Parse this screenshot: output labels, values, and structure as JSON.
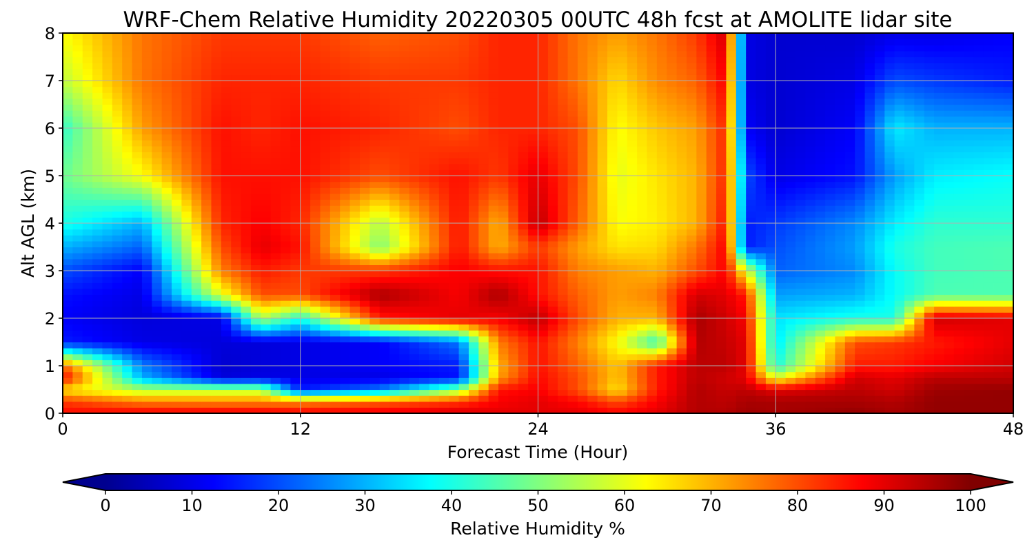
{
  "chart_data": {
    "type": "heatmap",
    "title": "WRF-Chem Relative Humidity 20220305 00UTC 48h fcst at AMOLITE lidar site",
    "xlabel": "Forecast Time (Hour)",
    "ylabel": "Alt AGL (km)",
    "xlim": [
      0,
      48
    ],
    "ylim": [
      0,
      8
    ],
    "xticks": [
      "0",
      "12",
      "24",
      "36",
      "48"
    ],
    "yticks": [
      "0",
      "1",
      "2",
      "3",
      "4",
      "5",
      "6",
      "7",
      "8"
    ],
    "grid": true,
    "colorbar": {
      "label": "Relative Humidity %",
      "range": [
        0,
        100
      ],
      "ticks": [
        "0",
        "10",
        "20",
        "30",
        "40",
        "50",
        "60",
        "70",
        "80",
        "90",
        "100"
      ],
      "colormap": "jet",
      "extend": "both",
      "orientation": "horizontal",
      "placement": "bottom"
    },
    "z_unit": "%",
    "x": [
      0,
      4,
      8,
      10,
      12,
      16,
      20,
      22,
      24,
      26,
      28,
      30,
      32,
      33.5,
      34.5,
      36,
      40,
      42,
      44,
      48
    ],
    "y": [
      0,
      0.25,
      0.5,
      0.75,
      1,
      1.5,
      2,
      2.5,
      3,
      3.5,
      4,
      5,
      6,
      7,
      8
    ],
    "z": [
      [
        87,
        89,
        90,
        90,
        89,
        90,
        92,
        90,
        90,
        90,
        88,
        90,
        95,
        95,
        97,
        96,
        98,
        96,
        98,
        98
      ],
      [
        82,
        75,
        74,
        74,
        74,
        78,
        82,
        88,
        90,
        87,
        80,
        88,
        95,
        94,
        96,
        96,
        96,
        95,
        98,
        98
      ],
      [
        65,
        55,
        55,
        55,
        15,
        25,
        52,
        86,
        88,
        80,
        65,
        85,
        95,
        93,
        94,
        90,
        94,
        92,
        97,
        98
      ],
      [
        88,
        30,
        9,
        10,
        10,
        10,
        14,
        72,
        87,
        80,
        68,
        85,
        94,
        92,
        90,
        60,
        92,
        90,
        94,
        94
      ],
      [
        78,
        25,
        8,
        9,
        10,
        12,
        15,
        70,
        86,
        78,
        68,
        85,
        94,
        94,
        90,
        40,
        85,
        85,
        88,
        92
      ],
      [
        15,
        10,
        9,
        9,
        10,
        12,
        24,
        75,
        86,
        75,
        62,
        42,
        95,
        93,
        90,
        35,
        80,
        82,
        85,
        90
      ],
      [
        12,
        9,
        10,
        55,
        40,
        85,
        90,
        88,
        94,
        80,
        70,
        70,
        96,
        92,
        88,
        35,
        40,
        40,
        92,
        90
      ],
      [
        14,
        10,
        60,
        80,
        80,
        96,
        88,
        96,
        86,
        78,
        72,
        75,
        92,
        90,
        85,
        28,
        30,
        38,
        45,
        45
      ],
      [
        20,
        12,
        75,
        85,
        82,
        82,
        88,
        86,
        86,
        75,
        72,
        70,
        80,
        88,
        60,
        22,
        26,
        38,
        44,
        45
      ],
      [
        30,
        22,
        80,
        90,
        86,
        50,
        86,
        70,
        82,
        72,
        65,
        66,
        76,
        88,
        15,
        20,
        28,
        40,
        44,
        45
      ],
      [
        40,
        30,
        84,
        88,
        84,
        55,
        86,
        70,
        94,
        78,
        62,
        64,
        70,
        86,
        15,
        18,
        26,
        36,
        42,
        42
      ],
      [
        48,
        62,
        86,
        86,
        86,
        80,
        86,
        82,
        90,
        80,
        60,
        65,
        70,
        84,
        20,
        10,
        14,
        28,
        36,
        38
      ],
      [
        42,
        72,
        86,
        84,
        86,
        84,
        80,
        84,
        84,
        80,
        62,
        68,
        72,
        84,
        12,
        8,
        12,
        36,
        30,
        30
      ],
      [
        56,
        76,
        84,
        84,
        84,
        82,
        82,
        84,
        84,
        76,
        66,
        74,
        78,
        88,
        10,
        8,
        10,
        20,
        18,
        15
      ],
      [
        62,
        76,
        82,
        82,
        82,
        78,
        80,
        84,
        84,
        76,
        72,
        76,
        82,
        92,
        10,
        8,
        8,
        10,
        10,
        12
      ]
    ]
  }
}
